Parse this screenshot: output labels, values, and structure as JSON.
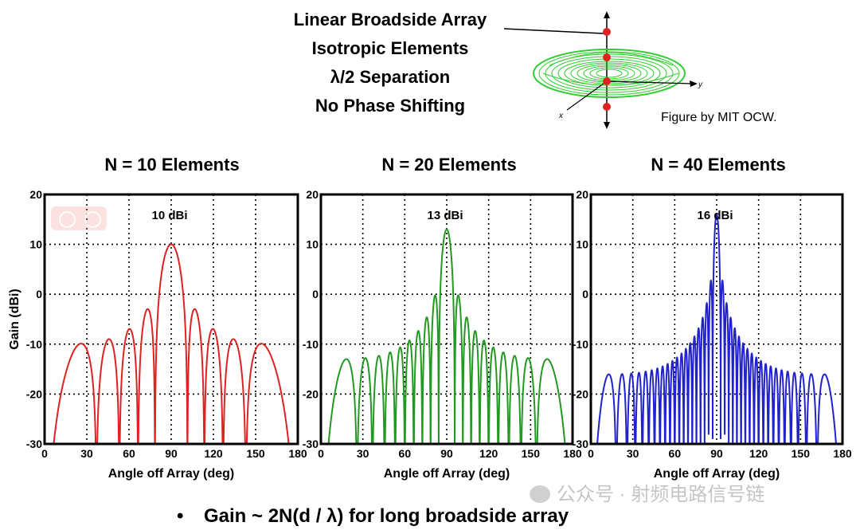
{
  "header": {
    "line1": "Linear Broadside Array",
    "line2": "Isotropic Elements",
    "line3": "λ/2 Separation",
    "line4": "No Phase Shifting"
  },
  "figure_credit": "Figure by MIT OCW.",
  "diagram": {
    "axis_labels": {
      "x": "x",
      "y": "y"
    },
    "pattern_color": "#33cc33",
    "element_color": "#dd2222"
  },
  "bullet": "Gain ~ 2N(d / λ) for long broadside array",
  "watermark": "公众号 · 射频电路信号链",
  "chart_data": [
    {
      "type": "line",
      "title": "N = 10 Elements",
      "N": 10,
      "annotation": "10 dBi",
      "xlabel": "Angle off Array (deg)",
      "ylabel": "Gain (dBi)",
      "xlim": [
        0,
        180
      ],
      "ylim": [
        -30,
        20
      ],
      "xticks": [
        0,
        30,
        60,
        90,
        120,
        150,
        180
      ],
      "yticks": [
        -30,
        -20,
        -10,
        0,
        10,
        20
      ],
      "grid": true,
      "color": "#dd2222",
      "peak_gain_dbi": 10
    },
    {
      "type": "line",
      "title": "N = 20 Elements",
      "N": 20,
      "annotation": "13 dBi",
      "xlabel": "Angle off Array (deg)",
      "ylabel": "",
      "xlim": [
        0,
        180
      ],
      "ylim": [
        -30,
        20
      ],
      "xticks": [
        0,
        30,
        60,
        90,
        120,
        150,
        180
      ],
      "yticks": [
        -30,
        -20,
        -10,
        0,
        10,
        20
      ],
      "grid": true,
      "color": "#229922",
      "peak_gain_dbi": 13
    },
    {
      "type": "line",
      "title": "N = 40 Elements",
      "N": 40,
      "annotation": "16 dBi",
      "xlabel": "Angle off Array (deg)",
      "ylabel": "",
      "xlim": [
        0,
        180
      ],
      "ylim": [
        -30,
        20
      ],
      "xticks": [
        0,
        30,
        60,
        90,
        120,
        150,
        180
      ],
      "yticks": [
        -30,
        -20,
        -10,
        0,
        10,
        20
      ],
      "grid": true,
      "color": "#2222cc",
      "peak_gain_dbi": 16
    }
  ]
}
